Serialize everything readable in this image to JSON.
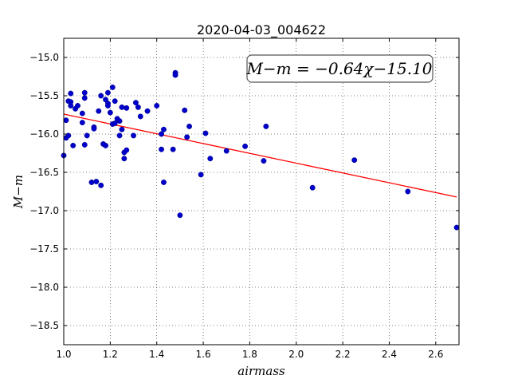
{
  "chart_data": {
    "type": "scatter",
    "title": "2020-04-03_004622",
    "xlabel": "airmass",
    "ylabel": "M−m",
    "xlim": [
      1.0,
      2.7
    ],
    "ylim": [
      -18.75,
      -14.75
    ],
    "x_ticks": [
      "1.0",
      "1.2",
      "1.4",
      "1.6",
      "1.8",
      "2.0",
      "2.2",
      "2.4",
      "2.6"
    ],
    "y_ticks": [
      "−15.0",
      "−15.5",
      "−16.0",
      "−16.5",
      "−17.0",
      "−17.5",
      "−18.0",
      "−18.5"
    ],
    "grid": true,
    "annotation": "M−m = −0.64χ−15.10",
    "point_color": "#0000cc",
    "fit_color": "#ff0000",
    "fit_line": {
      "slope": -0.64,
      "intercept": -15.1
    },
    "points": [
      [
        1.0,
        -16.28
      ],
      [
        1.01,
        -16.05
      ],
      [
        1.01,
        -15.82
      ],
      [
        1.02,
        -16.02
      ],
      [
        1.02,
        -15.57
      ],
      [
        1.03,
        -15.47
      ],
      [
        1.03,
        -15.63
      ],
      [
        1.03,
        -15.58
      ],
      [
        1.04,
        -16.15
      ],
      [
        1.05,
        -15.67
      ],
      [
        1.06,
        -15.63
      ],
      [
        1.08,
        -15.73
      ],
      [
        1.08,
        -15.85
      ],
      [
        1.09,
        -16.14
      ],
      [
        1.09,
        -15.46
      ],
      [
        1.09,
        -15.53
      ],
      [
        1.1,
        -16.02
      ],
      [
        1.12,
        -16.63
      ],
      [
        1.13,
        -15.91
      ],
      [
        1.13,
        -15.93
      ],
      [
        1.14,
        -16.62
      ],
      [
        1.15,
        -15.7
      ],
      [
        1.16,
        -16.67
      ],
      [
        1.16,
        -15.5
      ],
      [
        1.17,
        -16.13
      ],
      [
        1.18,
        -16.15
      ],
      [
        1.18,
        -15.55
      ],
      [
        1.19,
        -15.6
      ],
      [
        1.19,
        -15.46
      ],
      [
        1.19,
        -15.63
      ],
      [
        1.2,
        -15.72
      ],
      [
        1.21,
        -15.87
      ],
      [
        1.21,
        -15.39
      ],
      [
        1.22,
        -15.57
      ],
      [
        1.22,
        -15.86
      ],
      [
        1.23,
        -15.8
      ],
      [
        1.24,
        -16.02
      ],
      [
        1.24,
        -15.83
      ],
      [
        1.25,
        -15.65
      ],
      [
        1.25,
        -15.94
      ],
      [
        1.26,
        -16.24
      ],
      [
        1.26,
        -16.32
      ],
      [
        1.27,
        -16.21
      ],
      [
        1.27,
        -15.66
      ],
      [
        1.3,
        -16.02
      ],
      [
        1.31,
        -15.59
      ],
      [
        1.32,
        -15.65
      ],
      [
        1.33,
        -15.77
      ],
      [
        1.36,
        -15.7
      ],
      [
        1.4,
        -15.63
      ],
      [
        1.42,
        -16.0
      ],
      [
        1.42,
        -16.2
      ],
      [
        1.43,
        -15.94
      ],
      [
        1.43,
        -16.63
      ],
      [
        1.47,
        -16.2
      ],
      [
        1.48,
        -15.2
      ],
      [
        1.48,
        -15.23
      ],
      [
        1.5,
        -17.06
      ],
      [
        1.52,
        -15.69
      ],
      [
        1.53,
        -16.04
      ],
      [
        1.54,
        -15.9
      ],
      [
        1.59,
        -16.53
      ],
      [
        1.61,
        -15.99
      ],
      [
        1.63,
        -16.32
      ],
      [
        1.7,
        -16.22
      ],
      [
        1.78,
        -16.16
      ],
      [
        1.86,
        -16.35
      ],
      [
        1.87,
        -15.9
      ],
      [
        2.07,
        -16.7
      ],
      [
        2.25,
        -16.34
      ],
      [
        2.48,
        -16.75
      ],
      [
        2.69,
        -17.22
      ]
    ]
  }
}
